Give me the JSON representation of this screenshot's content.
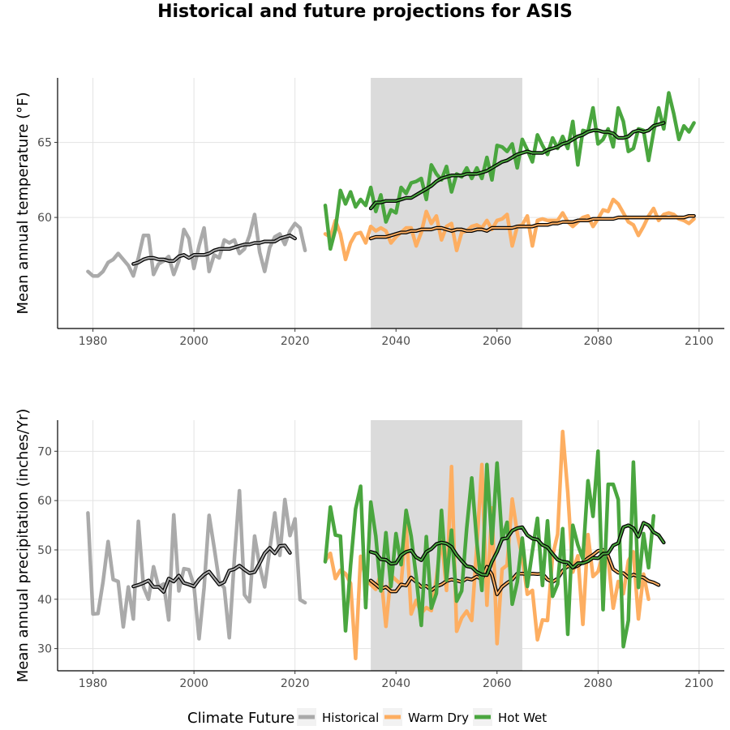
{
  "chart_data": {
    "title": "Historical and future projections for ASIS",
    "legend": {
      "title": "Climate Future",
      "placement": "bottom",
      "items": [
        {
          "label": "Historical",
          "color": "#aaaaaa"
        },
        {
          "label": "Warm Dry",
          "color": "#fdae61"
        },
        {
          "label": "Hot Wet",
          "color": "#4aa63f"
        }
      ]
    },
    "shaded_period": [
      2035,
      2065
    ],
    "panels": [
      {
        "type": "line",
        "ylabel": "Mean annual temperature (°F)",
        "xlabel": "",
        "xlim": [
          1973,
          2105
        ],
        "ylim": [
          52.6,
          69.3
        ],
        "xticks": [
          1980,
          2000,
          2020,
          2040,
          2060,
          2080,
          2100
        ],
        "yticks": [
          60,
          65
        ],
        "grid": true,
        "series": [
          {
            "name": "Historical",
            "color": "#aaaaaa",
            "start": 1979,
            "values": [
              56.4,
              56.1,
              56.1,
              56.4,
              57.0,
              57.2,
              57.6,
              57.2,
              56.8,
              56.1,
              57.3,
              58.8,
              58.8,
              56.2,
              56.9,
              57.1,
              57.4,
              56.2,
              57.1,
              59.2,
              58.6,
              56.6,
              58.1,
              59.3,
              56.4,
              57.5,
              57.3,
              58.5,
              58.3,
              58.5,
              57.6,
              57.9,
              58.8,
              60.2,
              57.7,
              56.4,
              58.0,
              58.7,
              58.9,
              58.2,
              59.1,
              59.6,
              59.3,
              57.8
            ]
          },
          {
            "name": "Historical moving average",
            "color": "#000000",
            "style": "smooth",
            "start": 1988,
            "values": [
              56.9,
              57.0,
              57.2,
              57.3,
              57.3,
              57.2,
              57.2,
              57.1,
              57.1,
              57.4,
              57.5,
              57.3,
              57.5,
              57.5,
              57.5,
              57.6,
              57.8,
              57.9,
              57.9,
              57.9,
              58.0,
              58.1,
              58.2,
              58.2,
              58.3,
              58.3,
              58.4,
              58.4,
              58.4,
              58.6,
              58.7,
              58.8,
              58.6
            ]
          },
          {
            "name": "Warm Dry",
            "color": "#fdae61",
            "start": 2026,
            "values": [
              58.9,
              58.7,
              59.8,
              58.9,
              57.2,
              58.3,
              58.9,
              59.0,
              58.3,
              59.4,
              59.1,
              59.3,
              59.1,
              58.3,
              58.7,
              59.0,
              59.3,
              59.3,
              58.1,
              59.0,
              60.4,
              59.6,
              60.1,
              58.5,
              59.4,
              59.6,
              57.8,
              59.0,
              59.1,
              59.4,
              59.5,
              59.3,
              59.8,
              59.2,
              59.8,
              59.9,
              60.2,
              58.1,
              59.4,
              59.5,
              60.1,
              58.1,
              59.8,
              59.9,
              59.8,
              59.8,
              59.8,
              60.3,
              59.7,
              59.4,
              59.7,
              60.0,
              60.1,
              59.4,
              59.9,
              60.5,
              60.4,
              61.2,
              60.9,
              60.3,
              59.7,
              59.5,
              58.8,
              59.4,
              60.1,
              60.6,
              59.8,
              60.2,
              60.3,
              60.2,
              59.9,
              59.8,
              59.6,
              59.9
            ]
          },
          {
            "name": "Warm Dry moving average",
            "color": "#000000",
            "style": "smooth",
            "start": 2035,
            "values": [
              58.6,
              58.7,
              58.7,
              58.7,
              58.8,
              58.9,
              59.0,
              59.0,
              59.1,
              59.1,
              59.2,
              59.2,
              59.2,
              59.3,
              59.3,
              59.2,
              59.1,
              59.2,
              59.2,
              59.1,
              59.1,
              59.2,
              59.2,
              59.1,
              59.3,
              59.3,
              59.3,
              59.3,
              59.3,
              59.4,
              59.4,
              59.4,
              59.4,
              59.5,
              59.5,
              59.5,
              59.6,
              59.6,
              59.7,
              59.7,
              59.7,
              59.8,
              59.8,
              59.8,
              59.9,
              59.9,
              59.9,
              59.9,
              59.9,
              60.0,
              60.0,
              60.0,
              60.0,
              60.0,
              60.0,
              60.0,
              60.0,
              60.0,
              60.0,
              60.0,
              60.0,
              60.0,
              60.0,
              60.1,
              60.1
            ]
          },
          {
            "name": "Hot Wet",
            "color": "#4aa63f",
            "start": 2026,
            "values": [
              60.8,
              57.9,
              59.2,
              61.8,
              60.9,
              61.7,
              60.7,
              61.2,
              60.8,
              62.0,
              60.4,
              61.5,
              59.7,
              60.5,
              60.3,
              62.0,
              61.6,
              62.3,
              62.4,
              62.6,
              61.2,
              63.5,
              62.9,
              62.5,
              63.4,
              61.7,
              62.9,
              62.7,
              63.3,
              62.6,
              63.3,
              62.6,
              64.0,
              62.5,
              64.8,
              64.7,
              64.4,
              64.9,
              63.3,
              65.2,
              64.5,
              63.7,
              65.5,
              64.8,
              64.2,
              65.3,
              64.6,
              65.4,
              64.6,
              66.4,
              63.5,
              65.8,
              65.7,
              67.3,
              64.9,
              65.2,
              65.9,
              64.7,
              67.3,
              66.4,
              64.4,
              64.6,
              65.9,
              65.8,
              63.8,
              65.7,
              67.3,
              65.9,
              68.3,
              66.9,
              65.2,
              66.1,
              65.7,
              66.3
            ]
          },
          {
            "name": "Hot Wet moving average",
            "color": "#000000",
            "style": "smooth",
            "start": 2035,
            "values": [
              60.6,
              61.0,
              61.0,
              61.1,
              61.1,
              61.1,
              61.2,
              61.3,
              61.3,
              61.5,
              61.7,
              61.9,
              62.1,
              62.4,
              62.6,
              62.7,
              62.8,
              62.8,
              62.8,
              62.9,
              62.9,
              62.9,
              63.0,
              63.1,
              63.3,
              63.5,
              63.7,
              63.8,
              64.0,
              64.2,
              64.3,
              64.4,
              64.3,
              64.3,
              64.3,
              64.5,
              64.6,
              64.7,
              64.9,
              65.0,
              65.2,
              65.4,
              65.5,
              65.7,
              65.8,
              65.8,
              65.7,
              65.7,
              65.6,
              65.3,
              65.3,
              65.4,
              65.7,
              65.8,
              65.7,
              65.8,
              66.1,
              66.2,
              66.3
            ]
          }
        ]
      },
      {
        "type": "line",
        "ylabel": "Mean annual precipitation (inches/Yr)",
        "xlabel": "",
        "xlim": [
          1973,
          2105
        ],
        "ylim": [
          25.5,
          76.3
        ],
        "xticks": [
          1980,
          2000,
          2020,
          2040,
          2060,
          2080,
          2100
        ],
        "yticks": [
          30,
          40,
          50,
          60,
          70
        ],
        "grid": true,
        "series": [
          {
            "name": "Historical",
            "color": "#aaaaaa",
            "start": 1979,
            "values": [
              57.5,
              37.0,
              37.1,
              43.5,
              51.7,
              44.0,
              43.6,
              34.4,
              42.5,
              36.0,
              55.8,
              42.5,
              40.0,
              46.6,
              42.5,
              43.1,
              35.8,
              57.1,
              41.7,
              46.2,
              46.0,
              42.8,
              32.0,
              42.3,
              57.0,
              50.5,
              43.6,
              42.3,
              32.2,
              48.3,
              62.0,
              40.9,
              39.5,
              52.8,
              46.8,
              42.5,
              50.0,
              57.5,
              48.9,
              60.2,
              52.9,
              56.3,
              39.9,
              39.3
            ]
          },
          {
            "name": "Historical moving average",
            "color": "#000000",
            "style": "smooth",
            "start": 1988,
            "values": [
              42.6,
              42.9,
              43.3,
              43.8,
              42.5,
              42.5,
              41.5,
              44.2,
              43.6,
              44.8,
              43.3,
              43.0,
              42.6,
              44.0,
              45.0,
              45.6,
              44.3,
              43.0,
              43.5,
              45.8,
              46.1,
              46.8,
              46.0,
              45.3,
              45.5,
              47.3,
              49.3,
              50.4,
              49.3,
              50.8,
              50.9,
              49.4
            ]
          },
          {
            "name": "Warm Dry",
            "color": "#fdae61",
            "start": 2026,
            "values": [
              47.8,
              49.3,
              44.2,
              45.9,
              45.2,
              43.2,
              28.0,
              48.7,
              44.2,
              43.0,
              42.0,
              45.2,
              34.5,
              44.9,
              43.9,
              43.0,
              55.1,
              37.0,
              39.8,
              37.2,
              38.3,
              37.7,
              44.2,
              52.6,
              41.8,
              66.9,
              33.5,
              36.2,
              37.6,
              35.7,
              50.8,
              67.3,
              38.8,
              58.5,
              31.0,
              46.1,
              46.9,
              60.3,
              53.4,
              48.5,
              41.0,
              41.8,
              31.8,
              35.8,
              35.7,
              48.8,
              53.2,
              74.0,
              61.7,
              45.5,
              48.8,
              34.9,
              53.1,
              44.6,
              45.6,
              49.3,
              48.3,
              38.2,
              43.6,
              41.1,
              47.8,
              49.6,
              36.0,
              45.1,
              40.0
            ]
          },
          {
            "name": "Warm Dry moving average",
            "color": "#000000",
            "style": "smooth",
            "start": 2035,
            "values": [
              43.8,
              43.0,
              42.1,
              42.5,
              41.6,
              41.6,
              43.0,
              42.8,
              44.4,
              43.5,
              42.5,
              42.7,
              41.8,
              42.6,
              43.0,
              43.7,
              44.0,
              43.8,
              43.5,
              44.2,
              44.0,
              44.6,
              44.0,
              46.6,
              45.0,
              41.0,
              42.5,
              43.3,
              44.0,
              45.2,
              45.2,
              45.1,
              45.2,
              45.1,
              45.2,
              44.0,
              43.5,
              44.2,
              45.8,
              46.7,
              46.4,
              46.8,
              47.5,
              48.3,
              49.0,
              49.8,
              50.0,
              48.8,
              46.1,
              45.4,
              45.3,
              44.4,
              45.0,
              44.6,
              44.4,
              43.7,
              43.4,
              42.9
            ]
          },
          {
            "name": "Hot Wet",
            "color": "#4aa63f",
            "start": 2026,
            "values": [
              47.6,
              58.7,
              53.0,
              52.8,
              33.6,
              46.8,
              58.3,
              62.9,
              38.3,
              59.7,
              52.8,
              41.7,
              53.5,
              42.6,
              53.3,
              47.0,
              58.0,
              52.8,
              44.6,
              34.7,
              52.7,
              38.2,
              41.2,
              58.0,
              43.8,
              54.0,
              39.6,
              41.7,
              54.4,
              64.6,
              51.5,
              41.8,
              67.3,
              51.3,
              67.6,
              52.0,
              55.6,
              39.0,
              43.5,
              52.4,
              42.6,
              49.8,
              56.4,
              42.8,
              55.9,
              40.6,
              43.1,
              54.3,
              32.9,
              55.0,
              51.0,
              48.2,
              64.0,
              56.8,
              70.0,
              37.9,
              63.3,
              63.3,
              60.2,
              30.4,
              35.7,
              67.8,
              42.4,
              53.3,
              46.4,
              56.9
            ]
          },
          {
            "name": "Hot Wet moving average",
            "color": "#000000",
            "style": "smooth",
            "start": 2035,
            "values": [
              49.6,
              49.3,
              48.1,
              48.0,
              47.2,
              47.3,
              48.9,
              49.6,
              49.9,
              48.5,
              47.9,
              49.6,
              50.2,
              51.2,
              51.5,
              51.3,
              50.6,
              49.0,
              47.8,
              46.7,
              46.5,
              45.5,
              45.0,
              44.9,
              47.6,
              49.6,
              52.2,
              52.4,
              53.9,
              54.4,
              54.6,
              53.0,
              52.3,
              52.1,
              51.0,
              50.5,
              49.2,
              48.0,
              47.6,
              47.5,
              46.4,
              47.3,
              47.3,
              47.7,
              48.4,
              48.3,
              49.2,
              49.3,
              50.9,
              51.4,
              54.6,
              55.0,
              54.4,
              52.7,
              55.5,
              55.0,
              53.6,
              53.0,
              51.5
            ]
          }
        ]
      }
    ]
  }
}
